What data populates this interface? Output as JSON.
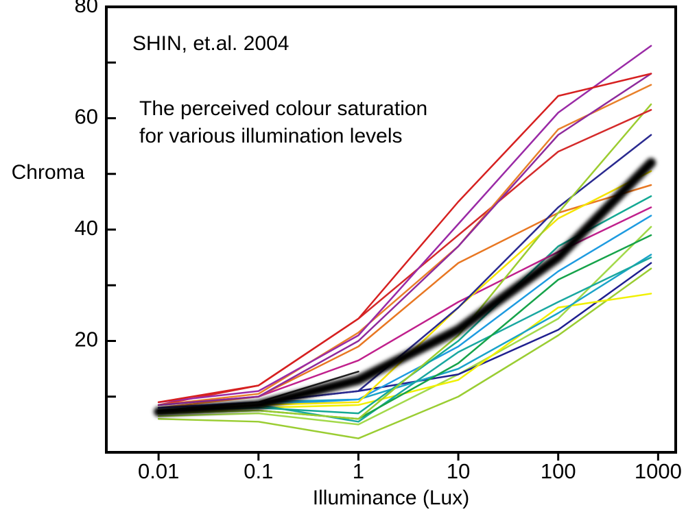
{
  "chart_data": {
    "type": "line",
    "annotations": [
      "SHIN, et.al. 2004",
      "The perceived colour saturation",
      "for various illumination levels"
    ],
    "y_label": "Chroma",
    "x_label": "Illuminance (Lux)",
    "x": [
      0.01,
      0.1,
      1,
      10,
      100,
      850
    ],
    "xscale": "log",
    "xlim": [
      0.003,
      1500
    ],
    "xticks": [
      0.01,
      0.1,
      1,
      10,
      100,
      1000
    ],
    "ylim": [
      0,
      80
    ],
    "yticks": [
      20,
      40,
      60,
      80
    ],
    "yticks_minor": [
      10,
      30,
      50,
      70
    ],
    "grid": false,
    "series": [
      {
        "color": "#9acd32",
        "values": [
          6,
          5.5,
          2.5,
          10,
          21,
          33
        ]
      },
      {
        "color": "#a3d94a",
        "values": [
          6.5,
          7,
          5,
          14,
          24,
          40.5
        ]
      },
      {
        "color": "#1f1f8f",
        "values": [
          7.5,
          9,
          11,
          14,
          22,
          34
        ]
      },
      {
        "color": "#f0f000",
        "values": [
          7,
          8,
          8.5,
          13,
          26,
          28.5
        ]
      },
      {
        "color": "#1aa3c8",
        "values": [
          8,
          9,
          9.5,
          15,
          25,
          35.5
        ]
      },
      {
        "color": "#19a7a0",
        "values": [
          7.5,
          8.5,
          5.5,
          18,
          27,
          35
        ]
      },
      {
        "color": "#16a34a",
        "values": [
          7,
          7.5,
          6,
          16,
          31,
          39
        ]
      },
      {
        "color": "#1e9be0",
        "values": [
          7.5,
          8.5,
          9.5,
          19,
          32.5,
          42.5
        ]
      },
      {
        "color": "#14a894",
        "values": [
          7.5,
          8,
          7,
          20,
          37,
          46
        ]
      },
      {
        "color": "#c0208c",
        "values": [
          8.5,
          10,
          16.5,
          27,
          36,
          44
        ]
      },
      {
        "color": "#e87722",
        "values": [
          8,
          10,
          19,
          34,
          43,
          48
        ]
      },
      {
        "color": "#f5e400",
        "values": [
          7.5,
          8.5,
          9,
          26,
          42,
          50.5
        ]
      },
      {
        "color": "#2a2a90",
        "values": [
          8,
          9,
          11,
          26,
          44,
          57
        ]
      },
      {
        "color": "#9ccc30",
        "values": [
          7,
          7.5,
          6,
          21,
          43,
          62.5
        ]
      },
      {
        "color": "#d42a2a",
        "values": [
          8.5,
          12,
          24,
          39,
          54,
          61.5
        ]
      },
      {
        "color": "#e8802a",
        "values": [
          8.5,
          10.5,
          21.5,
          37,
          58,
          66
        ]
      },
      {
        "color": "#8e2a9c",
        "values": [
          8.5,
          10,
          20,
          37,
          57,
          68
        ]
      },
      {
        "color": "#9a2aa6",
        "values": [
          9,
          11,
          21,
          41,
          61,
          73
        ]
      },
      {
        "color": "#d62020",
        "values": [
          9,
          12,
          24,
          45,
          64,
          68
        ]
      },
      {
        "color": "#222222",
        "values": [
          7.5,
          9,
          14.5,
          null,
          null,
          null
        ]
      },
      {
        "color": "#000000",
        "line_width": 14,
        "blur": true,
        "values": [
          7.3,
          8.5,
          13,
          22,
          35,
          52
        ]
      }
    ]
  }
}
